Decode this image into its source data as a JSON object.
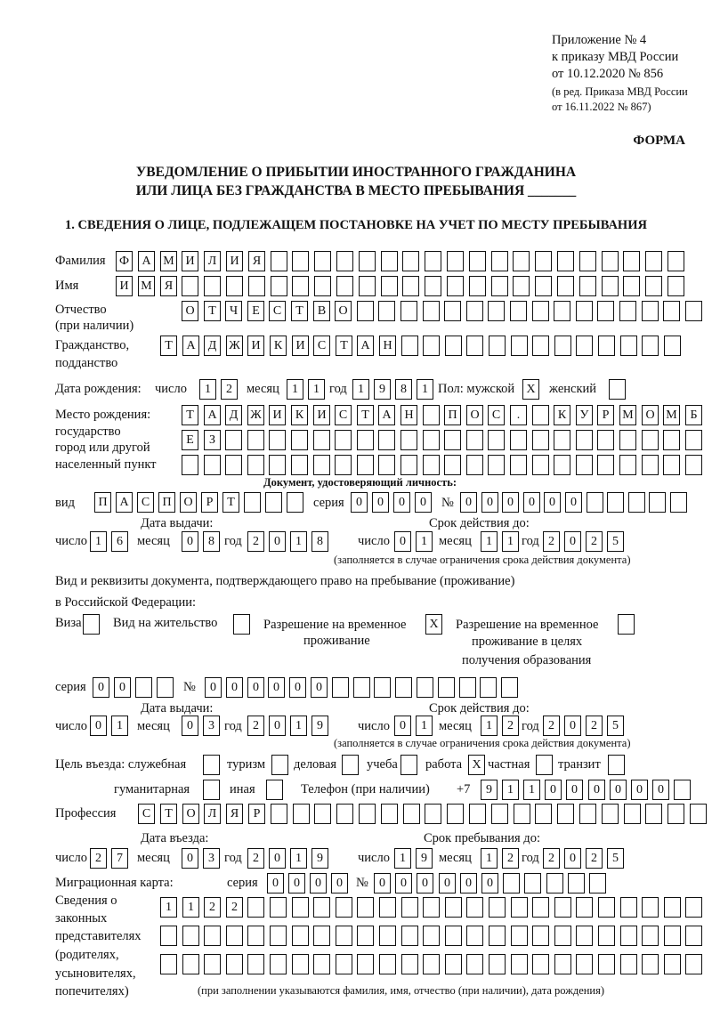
{
  "header": {
    "line1": "Приложение № 4",
    "line2": "к приказу МВД России",
    "line3": "от 10.12.2020 № 856",
    "line4": "(в ред. Приказа МВД России",
    "line5": "от 16.11.2022 № 867)",
    "forma": "ФОРМА"
  },
  "title": {
    "line1": "УВЕДОМЛЕНИЕ О ПРИБЫТИИ ИНОСТРАННОГО ГРАЖДАНИНА",
    "line2": "ИЛИ ЛИЦА БЕЗ ГРАЖДАНСТВА В МЕСТО ПРЕБЫВАНИЯ _______"
  },
  "section1": "1. СВЕДЕНИЯ О ЛИЦЕ, ПОДЛЕЖАЩЕМ ПОСТАНОВКЕ НА УЧЕТ ПО МЕСТУ ПРЕБЫВАНИЯ",
  "labels": {
    "familia": "Фамилия",
    "imya": "Имя",
    "otchestvo": "Отчество",
    "otchestvo2": "(при наличии)",
    "grazhd": "Гражданство,",
    "grazhd2": "подданство",
    "dob": "Дата рождения:",
    "chislo": "число",
    "mesyac": "месяц",
    "god": "год",
    "pol": "Пол: мужской",
    "zhensky": "женский",
    "mesto1": "Место рождения:",
    "mesto2": "государство",
    "mesto3": "город или другой",
    "mesto4": "населенный пункт",
    "doc_heading": "Документ, удостоверяющий личность:",
    "vid": "вид",
    "seria": "серия",
    "nomer": "№",
    "data_vydachi": "Дата выдачи:",
    "srok": "Срок действия до:",
    "note_srok": "(заполняется в случае ограничения срока действия документа)",
    "pravo1": "Вид и реквизиты документа, подтверждающего право на пребывание (проживание)",
    "pravo2": "в Российской Федерации:",
    "viza": "Виза",
    "vnzh": "Вид на жительство",
    "rvp1": "Разрешение на временное",
    "rvp2": "проживание",
    "rvpo1": "Разрешение на временное",
    "rvpo2": "проживание в целях",
    "rvpo3": "получения образования",
    "cel": "Цель въезда: служебная",
    "turizm": "туризм",
    "delovaya": "деловая",
    "ucheba": "учеба",
    "rabota": "работа",
    "chastnaya": "частная",
    "tranzit": "транзит",
    "gumanit": "гуманитарная",
    "inaya": "иная",
    "telefon": "Телефон (при наличии)",
    "plus7": "+7",
    "professia": "Профессия",
    "data_vezda": "Дата въезда:",
    "srok_preb": "Срок пребывания до:",
    "migr": "Миграционная карта:",
    "sved1": "Сведения о",
    "sved2": "законных",
    "sved3": "представителях",
    "sved4": "(родителях,",
    "sved5": "усыновителях,",
    "sved6": "попечителях)",
    "note_pred": "(при заполнении указываются фамилия, имя, отчество (при наличии), дата рождения)"
  },
  "fields": {
    "familia": [
      "Ф",
      "А",
      "М",
      "И",
      "Л",
      "И",
      "Я",
      "",
      "",
      "",
      "",
      "",
      "",
      "",
      "",
      "",
      "",
      "",
      "",
      "",
      "",
      "",
      "",
      "",
      "",
      ""
    ],
    "imya": [
      "И",
      "М",
      "Я",
      "",
      "",
      "",
      "",
      "",
      "",
      "",
      "",
      "",
      "",
      "",
      "",
      "",
      "",
      "",
      "",
      "",
      "",
      "",
      "",
      "",
      "",
      ""
    ],
    "otchestvo": [
      "О",
      "Т",
      "Ч",
      "Е",
      "С",
      "Т",
      "В",
      "О",
      "",
      "",
      "",
      "",
      "",
      "",
      "",
      "",
      "",
      "",
      "",
      "",
      "",
      "",
      "",
      ""
    ],
    "grazhdanstvo": [
      "Т",
      "А",
      "Д",
      "Ж",
      "И",
      "К",
      "И",
      "С",
      "Т",
      "А",
      "Н",
      "",
      "",
      "",
      "",
      "",
      "",
      "",
      "",
      "",
      "",
      "",
      "",
      ""
    ],
    "dob_day": [
      "1",
      "2"
    ],
    "dob_month": [
      "1",
      "1"
    ],
    "dob_year": [
      "1",
      "9",
      "8",
      "1"
    ],
    "sex_male": [
      "X"
    ],
    "sex_female": [
      ""
    ],
    "birthplace1": [
      "Т",
      "А",
      "Д",
      "Ж",
      "И",
      "К",
      "И",
      "С",
      "Т",
      "А",
      "Н",
      "",
      "П",
      "О",
      "С",
      ".",
      "",
      "К",
      "У",
      "Р",
      "М",
      "О",
      "М",
      "Б"
    ],
    "birthplace2": [
      "Е",
      "З",
      "",
      "",
      "",
      "",
      "",
      "",
      "",
      "",
      "",
      "",
      "",
      "",
      "",
      "",
      "",
      "",
      "",
      "",
      "",
      "",
      "",
      ""
    ],
    "birthplace3": [
      "",
      "",
      "",
      "",
      "",
      "",
      "",
      "",
      "",
      "",
      "",
      "",
      "",
      "",
      "",
      "",
      "",
      "",
      "",
      "",
      "",
      "",
      "",
      ""
    ],
    "doc_type": [
      "П",
      "А",
      "С",
      "П",
      "О",
      "Р",
      "Т",
      "",
      "",
      ""
    ],
    "doc_series": [
      "0",
      "0",
      "0",
      "0"
    ],
    "doc_number": [
      "0",
      "0",
      "0",
      "0",
      "0",
      "0",
      "",
      "",
      "",
      "",
      ""
    ],
    "doc_issue_day": [
      "1",
      "6"
    ],
    "doc_issue_month": [
      "0",
      "8"
    ],
    "doc_issue_year": [
      "2",
      "0",
      "1",
      "8"
    ],
    "doc_valid_day": [
      "0",
      "1"
    ],
    "doc_valid_month": [
      "1",
      "1"
    ],
    "doc_valid_year": [
      "2",
      "0",
      "2",
      "5"
    ],
    "right_viza": [
      ""
    ],
    "right_vnzh": [
      ""
    ],
    "right_rvp": [
      "X"
    ],
    "right_rvpo": [
      ""
    ],
    "right_series": [
      "0",
      "0",
      "",
      ""
    ],
    "right_number": [
      "0",
      "0",
      "0",
      "0",
      "0",
      "0",
      "",
      "",
      "",
      "",
      "",
      "",
      "",
      "",
      ""
    ],
    "right_issue_day": [
      "0",
      "1"
    ],
    "right_issue_month": [
      "0",
      "3"
    ],
    "right_issue_year": [
      "2",
      "0",
      "1",
      "9"
    ],
    "right_valid_day": [
      "0",
      "1"
    ],
    "right_valid_month": [
      "1",
      "2"
    ],
    "right_valid_year": [
      "2",
      "0",
      "2",
      "5"
    ],
    "p_sluzh": [
      ""
    ],
    "p_turizm": [
      ""
    ],
    "p_delovaya": [
      ""
    ],
    "p_ucheba": [
      ""
    ],
    "p_rabota": [
      "X"
    ],
    "p_chastnaya": [
      ""
    ],
    "p_tranzit": [
      ""
    ],
    "p_gumanit": [
      ""
    ],
    "p_inaya": [
      ""
    ],
    "phone": [
      "9",
      "1",
      "1",
      "0",
      "0",
      "0",
      "0",
      "0",
      "0",
      ""
    ],
    "profession": [
      "С",
      "Т",
      "О",
      "Л",
      "Я",
      "Р",
      "",
      "",
      "",
      "",
      "",
      "",
      "",
      "",
      "",
      "",
      "",
      "",
      "",
      "",
      "",
      "",
      "",
      "",
      "",
      ""
    ],
    "entry_day": [
      "2",
      "7"
    ],
    "entry_month": [
      "0",
      "3"
    ],
    "entry_year": [
      "2",
      "0",
      "1",
      "9"
    ],
    "stay_day": [
      "1",
      "9"
    ],
    "stay_month": [
      "1",
      "2"
    ],
    "stay_year": [
      "2",
      "0",
      "2",
      "5"
    ],
    "migr_series": [
      "0",
      "0",
      "0",
      "0"
    ],
    "migr_number": [
      "0",
      "0",
      "0",
      "0",
      "0",
      "0",
      "",
      "",
      "",
      "",
      ""
    ],
    "rep1": [
      "1",
      "1",
      "2",
      "2",
      "",
      "",
      "",
      "",
      "",
      "",
      "",
      "",
      "",
      "",
      "",
      "",
      "",
      "",
      "",
      "",
      "",
      "",
      "",
      "",
      ""
    ],
    "rep2": [
      "",
      "",
      "",
      "",
      "",
      "",
      "",
      "",
      "",
      "",
      "",
      "",
      "",
      "",
      "",
      "",
      "",
      "",
      "",
      "",
      "",
      "",
      "",
      "",
      ""
    ],
    "rep3": [
      "",
      "",
      "",
      "",
      "",
      "",
      "",
      "",
      "",
      "",
      "",
      "",
      "",
      "",
      "",
      "",
      "",
      "",
      "",
      "",
      "",
      "",
      "",
      "",
      ""
    ]
  }
}
